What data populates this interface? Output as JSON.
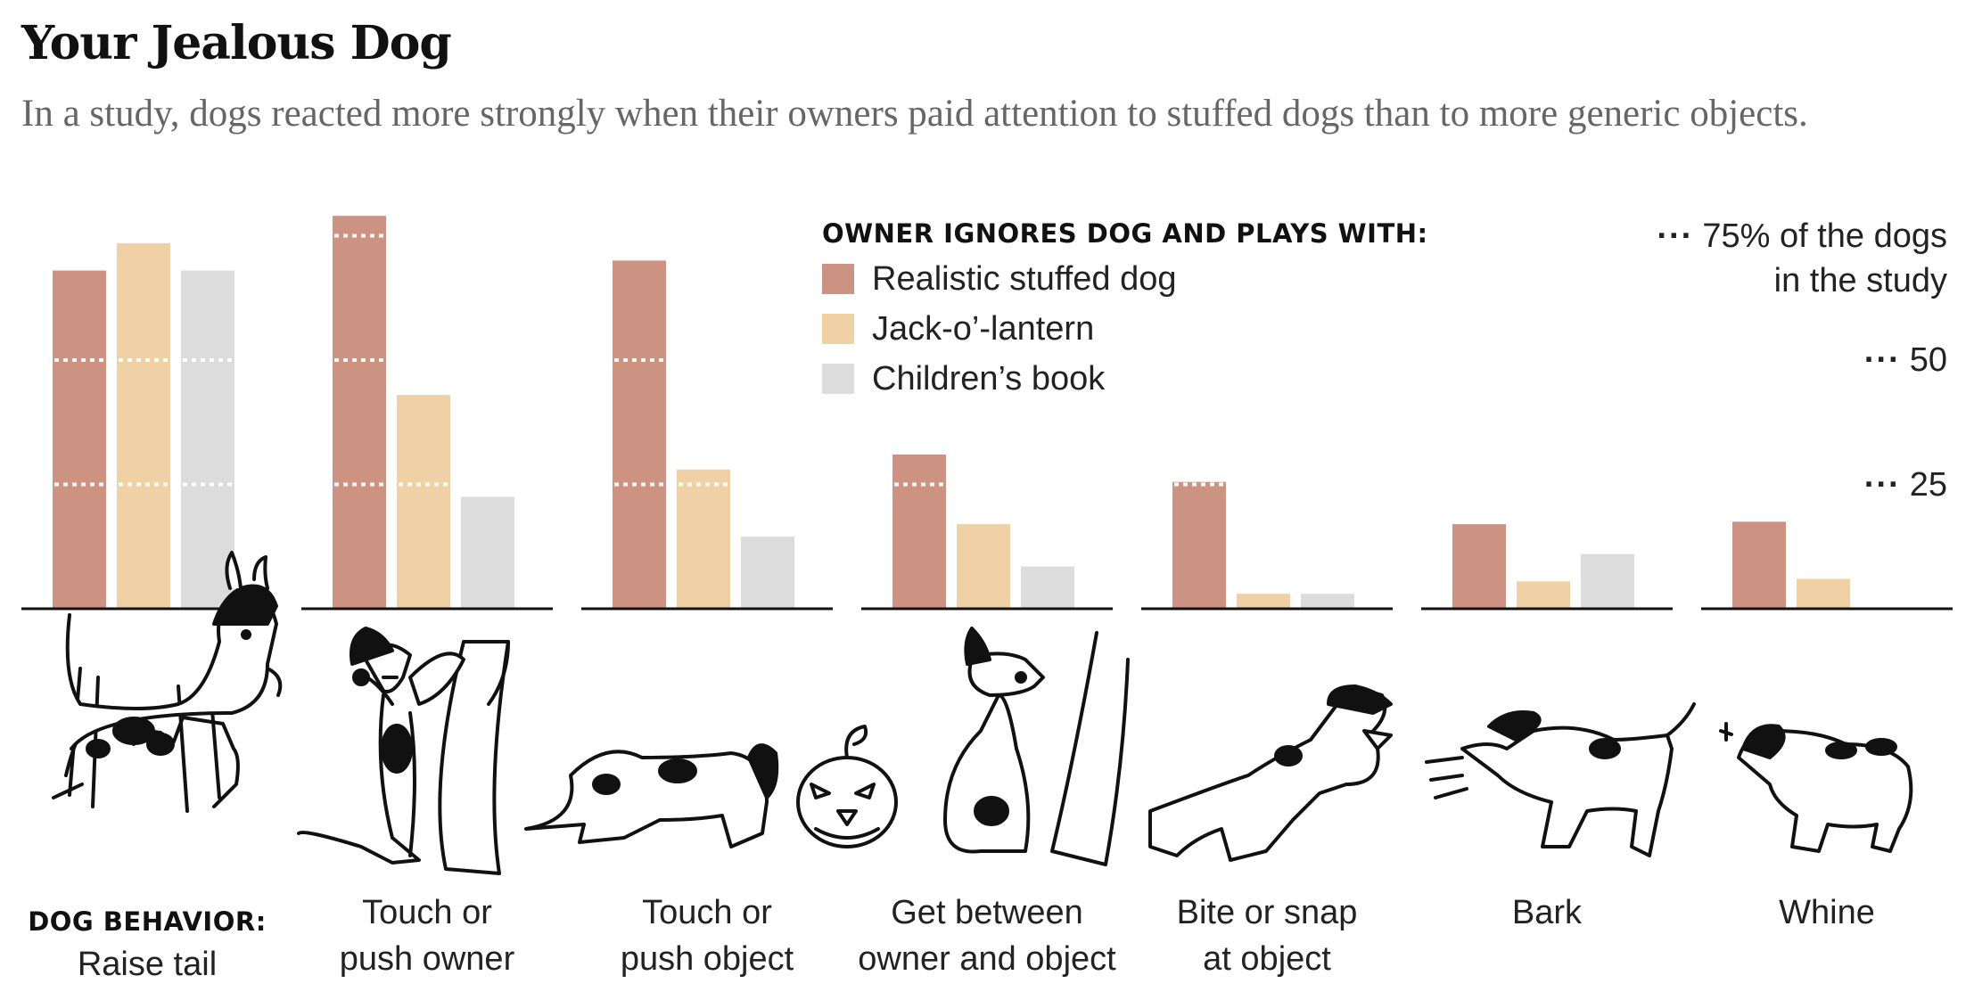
{
  "title": "Your Jealous Dog",
  "subtitle": "In a study, dogs reacted more strongly when their owners paid attention to stuffed dogs than to more generic objects.",
  "legend": {
    "title": "OWNER IGNORES DOG AND PLAYS WITH:",
    "items": [
      {
        "label": "Realistic stuffed dog",
        "color": "#cc9282"
      },
      {
        "label": "Jack-o’-lantern",
        "color": "#efd1a5"
      },
      {
        "label": "Children’s book",
        "color": "#dcdcdc"
      }
    ]
  },
  "axis": {
    "ticks": [
      {
        "value": 75,
        "label": "75% of the dogs",
        "label2": "in the study"
      },
      {
        "value": 50,
        "label": "50"
      },
      {
        "value": 25,
        "label": "25"
      }
    ],
    "dots": "···"
  },
  "category_prefix": "DOG BEHAVIOR:",
  "chart_data": {
    "type": "bar",
    "title": "Your Jealous Dog",
    "ylabel": "% of the dogs in the study",
    "ylim": [
      0,
      80
    ],
    "gridlines": [
      25,
      50,
      75
    ],
    "legend_placement": "top-right",
    "categories": [
      [
        "Raise tail"
      ],
      [
        "Touch or",
        "push owner"
      ],
      [
        "Touch or",
        "push object"
      ],
      [
        "Get between",
        "owner and object"
      ],
      [
        "Bite or snap",
        "at object"
      ],
      [
        "Bark"
      ],
      [
        "Whine"
      ]
    ],
    "series": [
      {
        "name": "Realistic stuffed dog",
        "color": "#cc9282",
        "values": [
          68,
          79,
          70,
          31,
          25.5,
          17,
          17.5
        ]
      },
      {
        "name": "Jack-o’-lantern",
        "color": "#efd1a5",
        "values": [
          73.5,
          43,
          28,
          17,
          3,
          5.5,
          6
        ]
      },
      {
        "name": "Children’s book",
        "color": "#dcdcdc",
        "values": [
          68,
          22.5,
          14.5,
          8.5,
          3,
          11,
          0
        ]
      }
    ]
  }
}
